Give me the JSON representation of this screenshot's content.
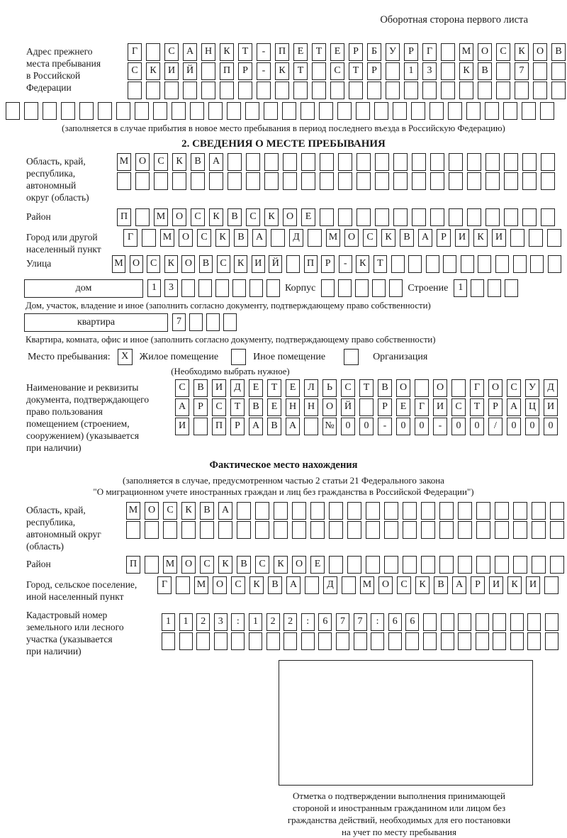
{
  "header": {
    "note": "Оборотная сторона первого листа"
  },
  "prev_address": {
    "label_lines": [
      "Адрес прежнего",
      "места пребывания",
      "в Российской",
      "Федерации"
    ],
    "rows": [
      [
        "Г",
        "",
        "С",
        "А",
        "Н",
        "К",
        "Т",
        "-",
        "П",
        "Е",
        "Т",
        "Е",
        "Р",
        "Б",
        "У",
        "Р",
        "Г",
        "",
        "М",
        "О",
        "С",
        "К",
        "О",
        "В"
      ],
      [
        "С",
        "К",
        "И",
        "Й",
        "",
        "П",
        "Р",
        "-",
        "К",
        "Т",
        "",
        "С",
        "Т",
        "Р",
        "",
        "1",
        "3",
        "",
        "К",
        "В",
        "",
        "7",
        "",
        ""
      ],
      [
        "",
        "",
        "",
        "",
        "",
        "",
        "",
        "",
        "",
        "",
        "",
        "",
        "",
        "",
        "",
        "",
        "",
        "",
        "",
        "",
        "",
        "",
        "",
        ""
      ]
    ],
    "full_row": [
      "",
      "",
      "",
      "",
      "",
      "",
      "",
      "",
      "",
      "",
      "",
      "",
      "",
      "",
      "",
      "",
      "",
      "",
      "",
      "",
      "",
      "",
      "",
      "",
      "",
      "",
      "",
      "",
      "",
      ""
    ],
    "caption": "(заполняется в случае прибытия в новое место пребывания в период последнего въезда в Российскую Федерацию)"
  },
  "section2": {
    "title": "2. СВЕДЕНИЯ О МЕСТЕ ПРЕБЫВАНИЯ",
    "oblast": {
      "label_lines": [
        "Область, край,",
        "республика,",
        "автономный",
        "округ (область)"
      ],
      "rows": [
        [
          "М",
          "О",
          "С",
          "К",
          "В",
          "А",
          "",
          "",
          "",
          "",
          "",
          "",
          "",
          "",
          "",
          "",
          "",
          "",
          "",
          "",
          "",
          "",
          "",
          ""
        ],
        [
          "",
          "",
          "",
          "",
          "",
          "",
          "",
          "",
          "",
          "",
          "",
          "",
          "",
          "",
          "",
          "",
          "",
          "",
          "",
          "",
          "",
          "",
          "",
          ""
        ]
      ]
    },
    "raion": {
      "label": "Район",
      "row": [
        "П",
        "",
        "М",
        "О",
        "С",
        "К",
        "В",
        "С",
        "К",
        "О",
        "Е",
        "",
        "",
        "",
        "",
        "",
        "",
        "",
        "",
        "",
        "",
        "",
        "",
        ""
      ]
    },
    "gorod": {
      "label_lines": [
        "Город или другой",
        "населенный пункт"
      ],
      "row": [
        "Г",
        "",
        "М",
        "О",
        "С",
        "К",
        "В",
        "А",
        "",
        "Д",
        "",
        "М",
        "О",
        "С",
        "К",
        "В",
        "А",
        "Р",
        "И",
        "К",
        "И",
        "",
        "",
        ""
      ]
    },
    "ulitsa": {
      "label": "Улица",
      "row": [
        "М",
        "О",
        "С",
        "К",
        "О",
        "В",
        "С",
        "К",
        "И",
        "Й",
        "",
        "П",
        "Р",
        "-",
        "К",
        "Т",
        "",
        "",
        "",
        "",
        "",
        "",
        "",
        "",
        "",
        ""
      ]
    },
    "dom": {
      "box_label": "дом",
      "cells": [
        "1",
        "3",
        "",
        "",
        "",
        "",
        "",
        ""
      ],
      "korpus_label": "Корпус",
      "korpus_cells": [
        "",
        "",
        "",
        "",
        ""
      ],
      "stroenie_label": "Строение",
      "stroenie_cells": [
        "1",
        "",
        "",
        ""
      ],
      "caption": "Дом, участок, владение и иное (заполнить согласно документу, подтверждающему право собственности)"
    },
    "kvartira": {
      "box_label": "квартира",
      "cells": [
        "7",
        "",
        "",
        ""
      ],
      "caption": "Квартира, комната, офис и иное (заполнить согласно документу, подтверждающему право собственности)"
    },
    "mesto": {
      "label": "Место пребывания:",
      "options": [
        {
          "label": "Жилое помещение",
          "mark": "X"
        },
        {
          "label": "Иное помещение",
          "mark": ""
        },
        {
          "label": "Организация",
          "mark": ""
        }
      ],
      "note": "(Необходимо выбрать нужное)"
    },
    "doc": {
      "label_lines": [
        "Наименование и реквизиты",
        "документа, подтверждающего",
        "право пользования",
        "помещением (строением,",
        "сооружением) (указывается",
        "при наличии)"
      ],
      "rows": [
        [
          "С",
          "В",
          "И",
          "Д",
          "Е",
          "Т",
          "Е",
          "Л",
          "Ь",
          "С",
          "Т",
          "В",
          "О",
          "",
          "О",
          "",
          "Г",
          "О",
          "С",
          "У",
          "Д"
        ],
        [
          "А",
          "Р",
          "С",
          "Т",
          "В",
          "Е",
          "Н",
          "Н",
          "О",
          "Й",
          "",
          "Р",
          "Е",
          "Г",
          "И",
          "С",
          "Т",
          "Р",
          "А",
          "Ц",
          "И"
        ],
        [
          "И",
          "",
          "П",
          "Р",
          "А",
          "В",
          "А",
          "",
          "№",
          "0",
          "0",
          "-",
          "0",
          "0",
          "-",
          "0",
          "0",
          "/",
          "0",
          "0",
          "0"
        ]
      ]
    }
  },
  "fakt": {
    "title": "Фактическое место нахождения",
    "caption_lines": [
      "(заполняется в случае, предусмотренном частью 2 статьи 21 Федерального закона",
      "\"О миграционном учете иностранных граждан и лиц без гражданства в Российской Федерации\")"
    ],
    "oblast": {
      "label_lines": [
        "Область, край,",
        "республика,",
        "автономный округ",
        "(область)"
      ],
      "rows": [
        [
          "М",
          "О",
          "С",
          "К",
          "В",
          "А",
          "",
          "",
          "",
          "",
          "",
          "",
          "",
          "",
          "",
          "",
          "",
          "",
          "",
          "",
          "",
          "",
          "",
          ""
        ],
        [
          "",
          "",
          "",
          "",
          "",
          "",
          "",
          "",
          "",
          "",
          "",
          "",
          "",
          "",
          "",
          "",
          "",
          "",
          "",
          "",
          "",
          "",
          "",
          ""
        ]
      ]
    },
    "raion": {
      "label": "Район",
      "row": [
        "П",
        "",
        "М",
        "О",
        "С",
        "К",
        "В",
        "С",
        "К",
        "О",
        "Е",
        "",
        "",
        "",
        "",
        "",
        "",
        "",
        "",
        "",
        "",
        "",
        "",
        ""
      ]
    },
    "gorod": {
      "label_lines": [
        "Город, сельское поселение,",
        "иной населенный пункт"
      ],
      "row": [
        "Г",
        "",
        "М",
        "О",
        "С",
        "К",
        "В",
        "А",
        "",
        "Д",
        "",
        "М",
        "О",
        "С",
        "К",
        "В",
        "А",
        "Р",
        "И",
        "К",
        "И",
        ""
      ]
    },
    "kadastr": {
      "label_lines": [
        "Кадастровый номер",
        "земельного или лесного",
        "участка (указывается",
        "при наличии)"
      ],
      "rows": [
        [
          "1",
          "1",
          "2",
          "3",
          ":",
          "1",
          "2",
          "2",
          ":",
          "6",
          "7",
          "7",
          ":",
          "6",
          "6",
          "",
          "",
          "",
          "",
          "",
          "",
          "",
          ""
        ],
        [
          "",
          "",
          "",
          "",
          "",
          "",
          "",
          "",
          "",
          "",
          "",
          "",
          "",
          "",
          "",
          "",
          "",
          "",
          "",
          "",
          "",
          "",
          ""
        ]
      ]
    },
    "stamp_caption_lines": [
      "Отметка о подтверждении выполнения принимающей",
      "стороной и иностранным гражданином или лицом без",
      "гражданства действий, необходимых для его постановки",
      "на учет по месту пребывания"
    ]
  }
}
